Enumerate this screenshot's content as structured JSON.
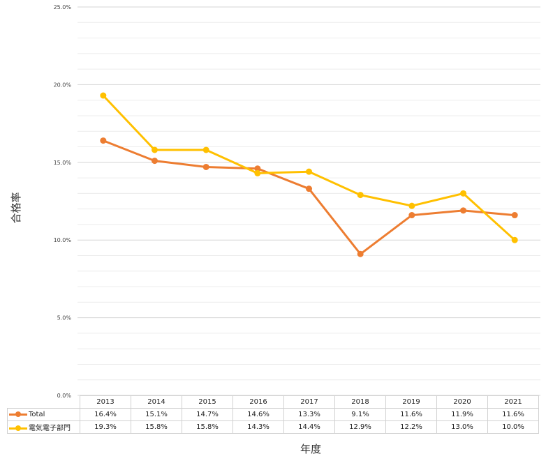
{
  "chart_data": {
    "type": "line",
    "title": "",
    "xlabel": "年度",
    "ylabel": "合格率",
    "ylim": [
      0,
      25
    ],
    "ytick_labels": [
      "0.0%",
      "5.0%",
      "10.0%",
      "15.0%",
      "20.0%",
      "25.0%"
    ],
    "categories": [
      "2013",
      "2014",
      "2015",
      "2016",
      "2017",
      "2018",
      "2019",
      "2020",
      "2021"
    ],
    "grid": true,
    "legend": "data-table",
    "series": [
      {
        "name": "Total",
        "color": "#ED7D31",
        "values": [
          16.4,
          15.1,
          14.7,
          14.6,
          13.3,
          9.1,
          11.6,
          11.9,
          11.6
        ],
        "labels": [
          "16.4%",
          "15.1%",
          "14.7%",
          "14.6%",
          "13.3%",
          "9.1%",
          "11.6%",
          "11.9%",
          "11.6%"
        ]
      },
      {
        "name": "電気電子部門",
        "color": "#FFC000",
        "values": [
          19.3,
          15.8,
          15.8,
          14.3,
          14.4,
          12.9,
          12.2,
          13.0,
          10.0
        ],
        "labels": [
          "19.3%",
          "15.8%",
          "15.8%",
          "14.3%",
          "14.4%",
          "12.9%",
          "12.2%",
          "13.0%",
          "10.0%"
        ]
      }
    ]
  }
}
